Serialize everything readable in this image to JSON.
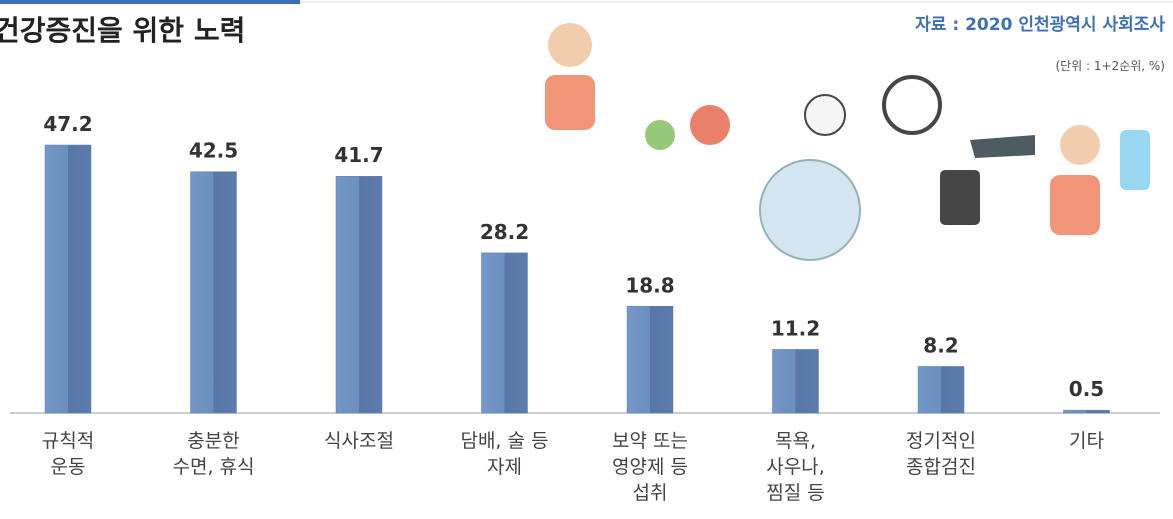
{
  "chart_data": {
    "type": "bar",
    "title": "건강증진을 위한 노력",
    "source": "자료 : 2020 인천광역시 사회조사",
    "unit": "(단위 : 1+2순위, %)",
    "categories": [
      "규칙적\n운동",
      "충분한\n수면, 휴식",
      "식사조절",
      "담배, 술 등\n자제",
      "보약 또는\n영양제 등\n섭취",
      "목욕,\n사우나,\n찜질 등",
      "정기적인\n종합검진",
      "기타"
    ],
    "values": [
      47.2,
      42.5,
      41.7,
      28.2,
      18.8,
      11.2,
      8.2,
      0.5
    ],
    "color": "#5e82b3"
  }
}
